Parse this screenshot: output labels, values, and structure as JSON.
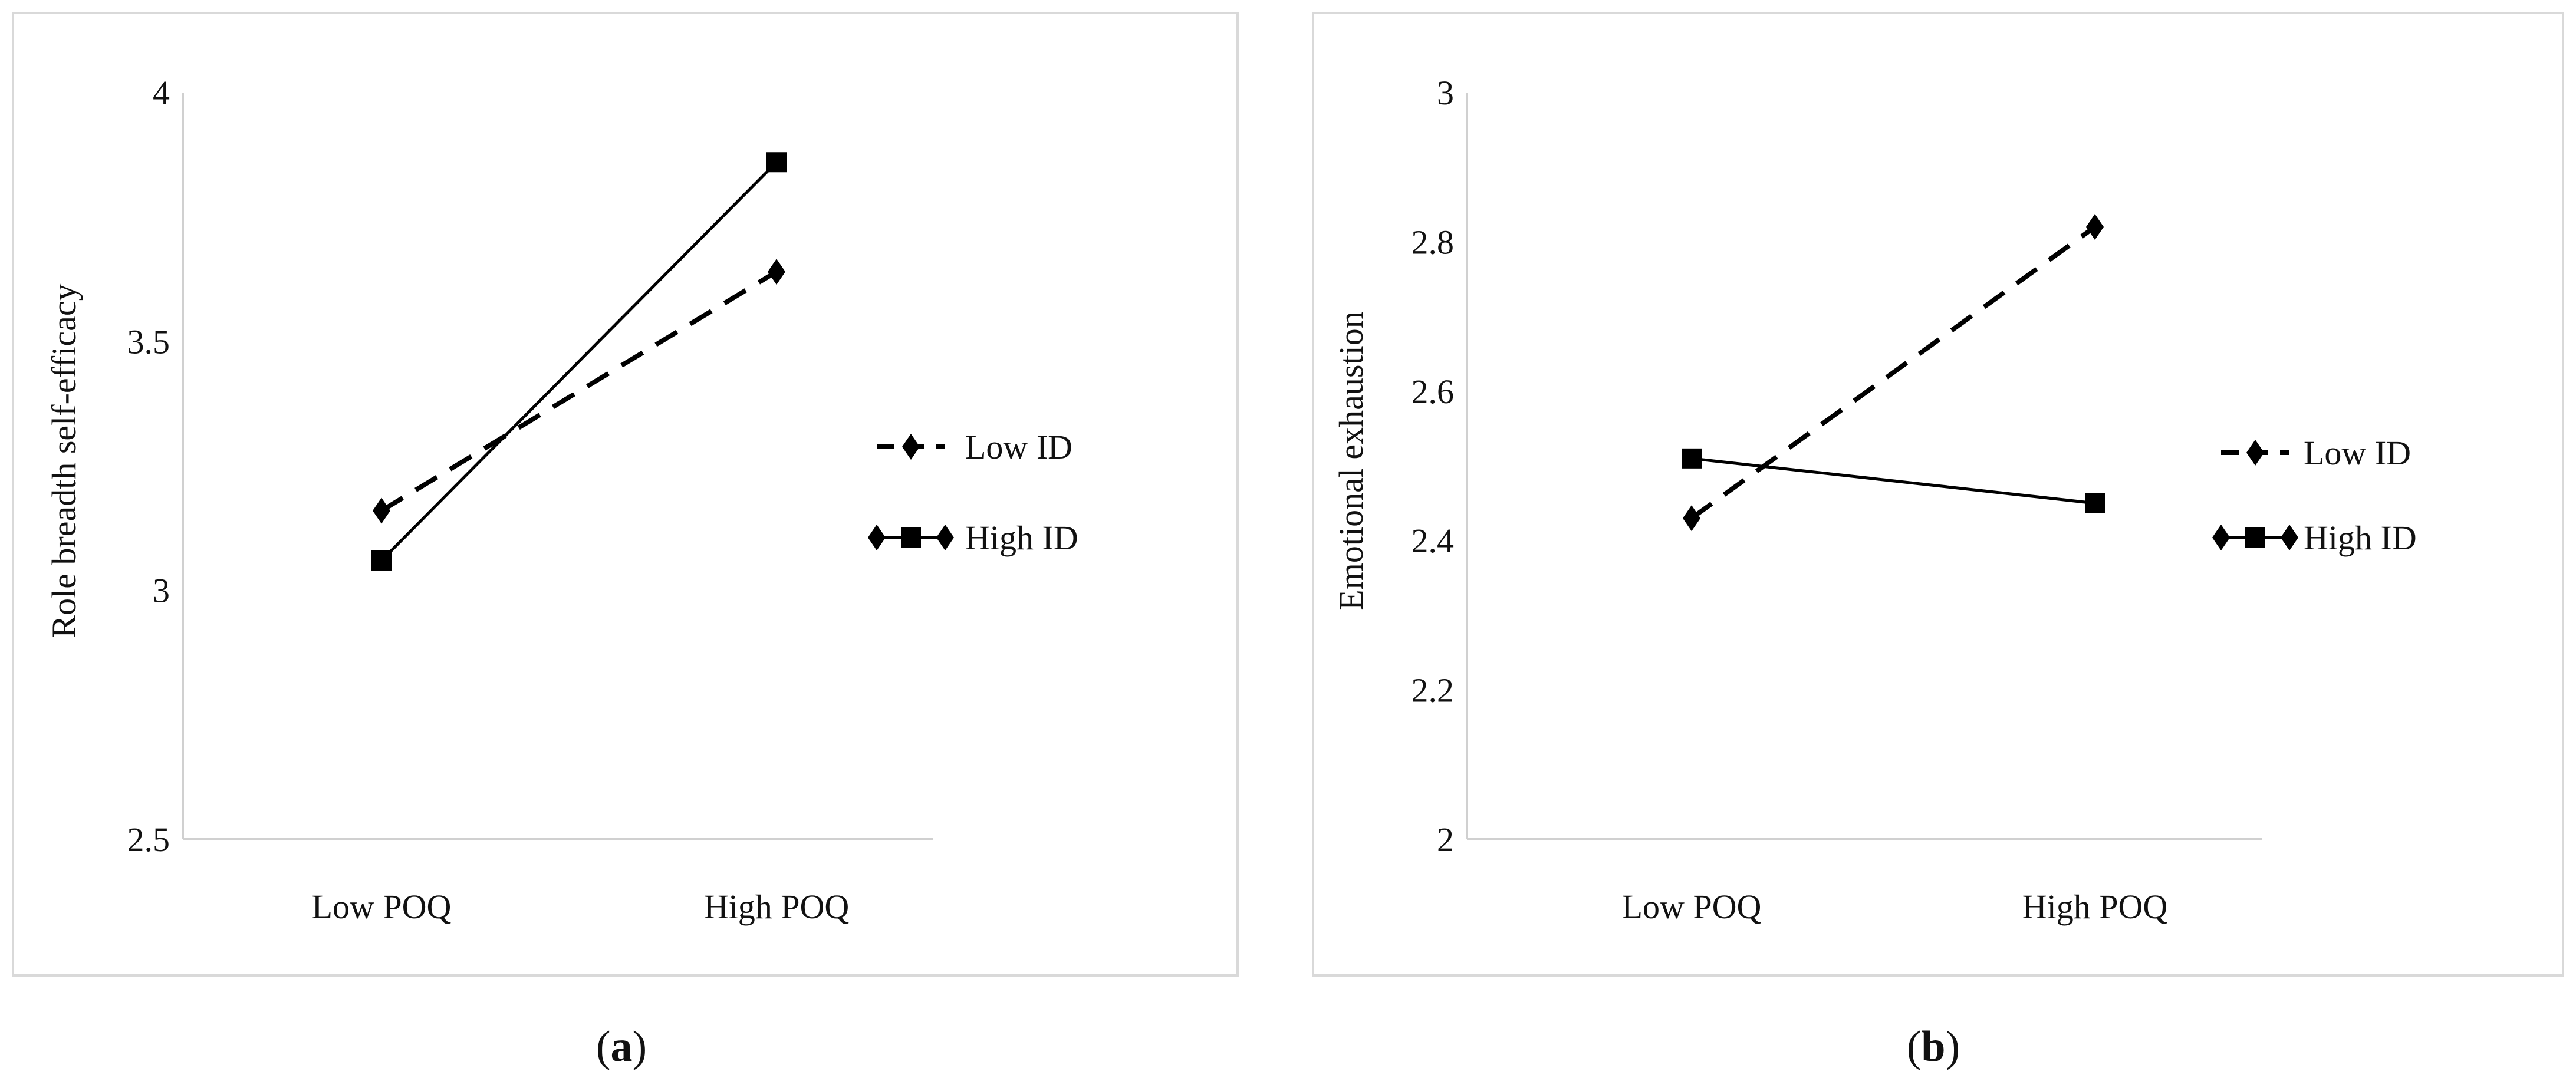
{
  "chart_data": [
    {
      "type": "line",
      "panel_label": "a",
      "title": "",
      "xlabel": "",
      "ylabel": "Role breadth self-efficacy",
      "categories": [
        "Low POQ",
        "High POQ"
      ],
      "ylim": [
        2.5,
        4
      ],
      "yticks": [
        "2.5",
        "3",
        "3.5",
        "4"
      ],
      "ytick_values": [
        2.5,
        3,
        3.5,
        4
      ],
      "grid": false,
      "legend_position": "right",
      "series": [
        {
          "name": "Low ID",
          "values": [
            3.16,
            3.64
          ],
          "style": "dashed",
          "marker": "diamond",
          "color": "#000000"
        },
        {
          "name": "High ID",
          "values": [
            3.06,
            3.86
          ],
          "style": "solid",
          "marker": "square",
          "color": "#000000"
        }
      ]
    },
    {
      "type": "line",
      "panel_label": "b",
      "title": "",
      "xlabel": "",
      "ylabel": "Emotional exhaustion",
      "categories": [
        "Low POQ",
        "High POQ"
      ],
      "ylim": [
        2,
        3
      ],
      "yticks": [
        "2",
        "2.2",
        "2.4",
        "2.6",
        "2.8",
        "3"
      ],
      "ytick_values": [
        2,
        2.2,
        2.4,
        2.6,
        2.8,
        3
      ],
      "grid": false,
      "legend_position": "right",
      "series": [
        {
          "name": "Low ID",
          "values": [
            2.43,
            2.82
          ],
          "style": "dashed",
          "marker": "diamond",
          "color": "#000000"
        },
        {
          "name": "High ID",
          "values": [
            2.51,
            2.45
          ],
          "style": "solid",
          "marker": "square",
          "color": "#000000"
        }
      ]
    }
  ]
}
